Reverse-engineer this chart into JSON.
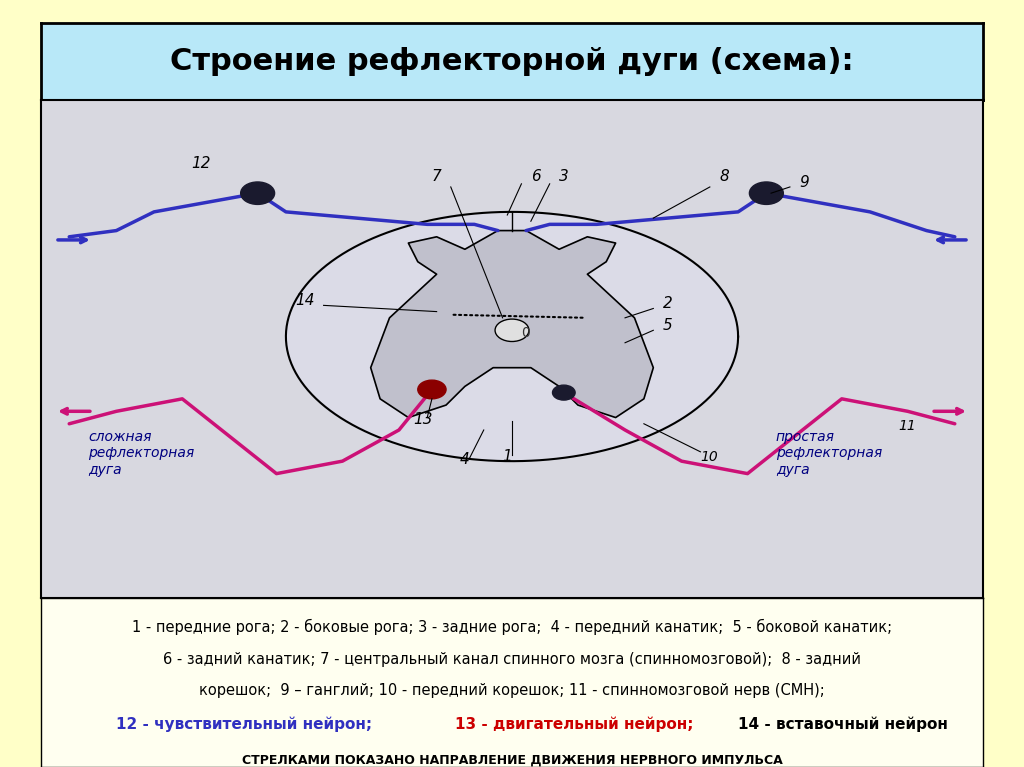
{
  "bg_color": "#ffffc8",
  "title_bg": "#b8e8f8",
  "title_text": "Строение рефлекторной дуги (схема):",
  "diagram_bg": "#d8d8e0",
  "legend_line1": "1 - передние рога; 2 - боковые рога; 3 - задние рога;  4 - передний канатик;  5 - боковой канатик;",
  "legend_line2": "6 - задний канатик; 7 - центральный канал спинного мозга (спинномозговой);  8 - задний",
  "legend_line3": "корешок;  9 – ганглий; 10 - передний корешок; 11 - спинномозговой нерв (СМН);",
  "legend_line4_black": "12 - чувствительный нейрон; ",
  "legend_line4_red": "13 - двигательный нейрон; ",
  "legend_line4_black2": "14 - вставочный нейрон",
  "legend_bottom": "СТРЕЛКАМИ ПОКАЗАНО НАПРАВЛЕНИЕ ДВИЖЕНИЯ НЕРВНОГО ИМПУЛЬСА",
  "blue_color": "#3030c0",
  "red_color": "#cc0000",
  "dark_red": "#800000",
  "black": "#000000",
  "dark_blue": "#000080"
}
